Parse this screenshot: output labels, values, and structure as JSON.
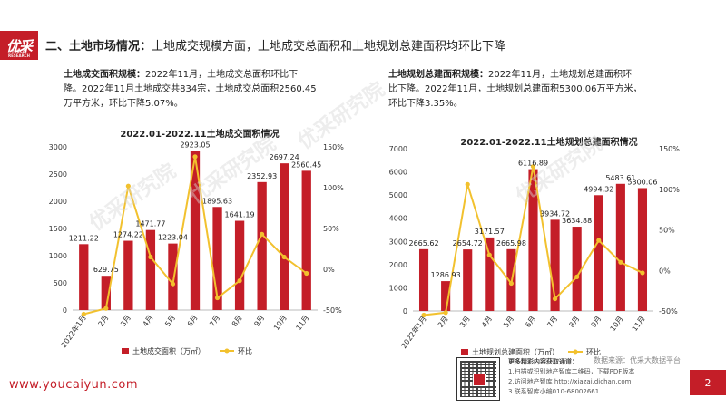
{
  "logo": {
    "text": "优采",
    "subtitle": "YOUCAI RESEARCH"
  },
  "slide_title": "二、土地市场情况：",
  "slide_title_rest": "土地成交规模方面，土地成交总面积和土地规划总建面积均环比下降",
  "left_para": {
    "lead": "土地成交面积规模：",
    "lines": [
      "2022年11月，土地成交总面积环比下",
      "降。2022年11月土地成交共834宗，土地成交总面积2560.45",
      "万平方米，环比下降5.07%。"
    ]
  },
  "right_para": {
    "lead": "土地规划总建面积规模：",
    "lines": [
      "2022年11月，土地规划总建面积环",
      "比下降。2022年11月，土地规划总建面积5300.06万平方米，",
      "环比下降3.35%。"
    ]
  },
  "chart_data": [
    {
      "type": "bar",
      "title": "2022.01-2022.11土地成交面积情况",
      "categories": [
        "2022年1月",
        "2月",
        "3月",
        "4月",
        "5月",
        "6月",
        "7月",
        "8月",
        "9月",
        "10月",
        "11月"
      ],
      "series": [
        {
          "name": "土地成交面积（万㎡）",
          "type": "bar",
          "axis": "left",
          "color": "#c41e28",
          "values": [
            1211.22,
            629.75,
            1274.22,
            1471.77,
            1223.04,
            2923.05,
            1895.63,
            1641.19,
            2352.93,
            2697.24,
            2560.45
          ]
        },
        {
          "name": "环比",
          "type": "line",
          "axis": "right",
          "color": "#f2c12e",
          "values": [
            -55,
            -48,
            102,
            15,
            -18,
            138,
            -35,
            -14,
            43,
            15,
            -5
          ]
        }
      ],
      "data_labels": [
        "1211.22",
        "629.75",
        "1274.22",
        "1471.77",
        "1223.04",
        "2923.05",
        "1895.63",
        "1641.19",
        "2352.93",
        "2697.24",
        "2560.45"
      ],
      "y_left": {
        "min": 0,
        "max": 3000,
        "ticks": [
          "0",
          "500",
          "1000",
          "1500",
          "2000",
          "2500",
          "3000"
        ]
      },
      "y_right": {
        "min": -50,
        "max": 150,
        "ticks": [
          "-50%",
          "0%",
          "50%",
          "100%",
          "150%"
        ]
      },
      "legend": "bottom"
    },
    {
      "type": "bar",
      "title": "2022.01-2022.11土地规划总建面积情况",
      "categories": [
        "2022年1月",
        "2月",
        "3月",
        "4月",
        "5月",
        "6月",
        "7月",
        "8月",
        "9月",
        "10月",
        "11月"
      ],
      "series": [
        {
          "name": "土地规划总建面积（万㎡）",
          "type": "bar",
          "axis": "left",
          "color": "#c41e28",
          "values": [
            2665.62,
            1286.93,
            2654.72,
            3171.57,
            2665.98,
            6116.89,
            3934.72,
            3634.88,
            4994.32,
            5483.61,
            5300.06
          ]
        },
        {
          "name": "环比",
          "type": "line",
          "axis": "right",
          "color": "#f2c12e",
          "values": [
            -55,
            -52,
            106,
            19,
            -16,
            128,
            -35,
            -8,
            37,
            10,
            -3
          ]
        }
      ],
      "data_labels": [
        "2665.62",
        "1286.93",
        "2654.72",
        "3171.57",
        "2665.98",
        "6116.89",
        "3934.72",
        "3634.88",
        "4994.32",
        "5483.61",
        "5300.06"
      ],
      "y_left": {
        "min": 0,
        "max": 7000,
        "ticks": [
          "0",
          "1000",
          "2000",
          "3000",
          "4000",
          "5000",
          "6000",
          "7000"
        ]
      },
      "y_right": {
        "min": -50,
        "max": 150,
        "ticks": [
          "-50%",
          "0%",
          "50%",
          "100%",
          "150%"
        ]
      },
      "legend": "bottom"
    }
  ],
  "watermarks": [
    "优采研究院",
    "优采研究院",
    "优采研究院",
    "优采研究院"
  ],
  "footer": {
    "url": "www.youcaiyun.com",
    "source": "数据来源：优采大数据平台",
    "more_title": "更多精彩内容获取通道：",
    "more_lines": [
      "1.扫描或识别地产智库二维码，下载PDF版本",
      "2.访问地产智库 http://xiazai.dichan.com",
      "3.联系智库小编010-68002661"
    ],
    "page": "2"
  }
}
